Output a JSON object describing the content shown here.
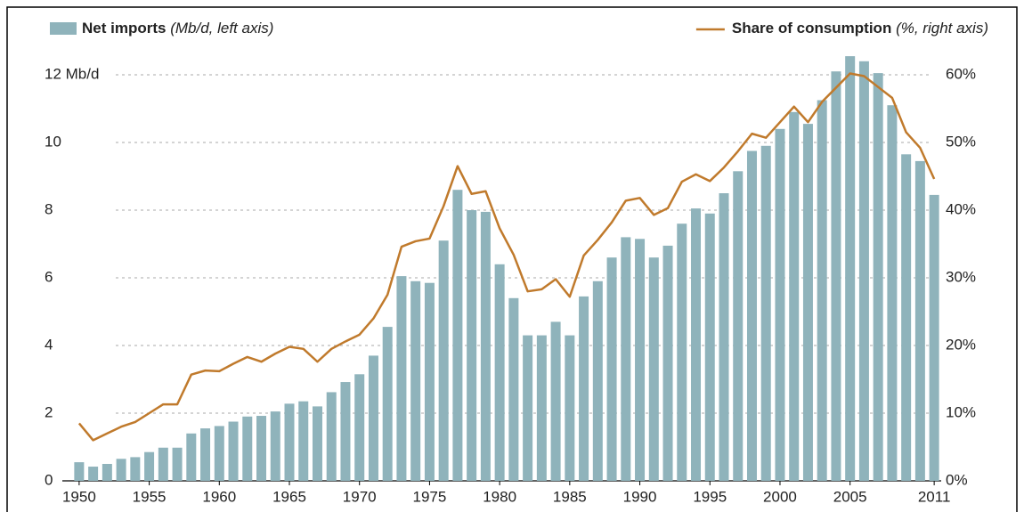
{
  "chart_data": {
    "type": "bar_line",
    "x": [
      1950,
      1951,
      1952,
      1953,
      1954,
      1955,
      1956,
      1957,
      1958,
      1959,
      1960,
      1961,
      1962,
      1963,
      1964,
      1965,
      1966,
      1967,
      1968,
      1969,
      1970,
      1971,
      1972,
      1973,
      1974,
      1975,
      1976,
      1977,
      1978,
      1979,
      1980,
      1981,
      1982,
      1983,
      1984,
      1985,
      1986,
      1987,
      1988,
      1989,
      1990,
      1991,
      1992,
      1993,
      1994,
      1995,
      1996,
      1997,
      1998,
      1999,
      2000,
      2001,
      2002,
      2003,
      2004,
      2005,
      2006,
      2007,
      2008,
      2009,
      2010,
      2011
    ],
    "xlim": [
      1949.5,
      2011.5
    ],
    "xticks": [
      1950,
      1955,
      1960,
      1965,
      1970,
      1975,
      1980,
      1985,
      1990,
      1995,
      2000,
      2005,
      2011
    ],
    "ylim": [
      0,
      12.6
    ],
    "yticks": [
      0,
      2,
      4,
      6,
      8,
      10,
      {
        "value": 12,
        "label": "12 Mb/d"
      }
    ],
    "y2lim": [
      0,
      63
    ],
    "y2ticks": [
      {
        "value": 0,
        "label": "0%"
      },
      {
        "value": 10,
        "label": "10%"
      },
      {
        "value": 20,
        "label": "20%"
      },
      {
        "value": 30,
        "label": "30%"
      },
      {
        "value": 40,
        "label": "40%"
      },
      {
        "value": 50,
        "label": "50%"
      },
      {
        "value": 60,
        "label": "60%"
      }
    ],
    "grid": true,
    "series": [
      {
        "name": "Net imports",
        "unit": "(Mb/d, left axis)",
        "type": "bar",
        "color": "#8fb3bb",
        "values": [
          0.55,
          0.42,
          0.5,
          0.65,
          0.7,
          0.85,
          0.98,
          0.98,
          1.4,
          1.55,
          1.62,
          1.75,
          1.9,
          1.92,
          2.05,
          2.28,
          2.35,
          2.2,
          2.62,
          2.92,
          3.15,
          3.7,
          4.55,
          6.05,
          5.9,
          5.85,
          7.1,
          8.6,
          8.0,
          7.95,
          6.4,
          5.4,
          4.3,
          4.3,
          4.7,
          4.3,
          5.45,
          5.9,
          6.6,
          7.2,
          7.15,
          6.6,
          6.95,
          7.6,
          8.05,
          7.9,
          8.5,
          9.15,
          9.75,
          9.9,
          10.4,
          10.9,
          10.55,
          11.25,
          12.1,
          12.55,
          12.4,
          12.05,
          11.1,
          9.65,
          9.45,
          8.45
        ]
      },
      {
        "name": "Share of consumption",
        "unit": "(%, right axis)",
        "type": "line",
        "axis": "y2",
        "color": "#c07a2c",
        "values": [
          8.5,
          6,
          7,
          8,
          8.7,
          10,
          11.3,
          11.3,
          15.7,
          16.3,
          16.2,
          17.3,
          18.3,
          17.6,
          18.8,
          19.8,
          19.5,
          17.6,
          19.5,
          20.6,
          21.6,
          24,
          27.5,
          34.6,
          35.4,
          35.8,
          40.6,
          46.5,
          42.4,
          42.8,
          37.3,
          33.4,
          28,
          28.3,
          29.8,
          27.2,
          33.3,
          35.6,
          38.2,
          41.4,
          41.8,
          39.3,
          40.3,
          44.2,
          45.3,
          44.3,
          46.3,
          48.7,
          51.3,
          50.7,
          53,
          55.3,
          53,
          56,
          58.1,
          60.2,
          59.8,
          58.2,
          56.6,
          51.5,
          49.2,
          44.6
        ]
      }
    ]
  }
}
